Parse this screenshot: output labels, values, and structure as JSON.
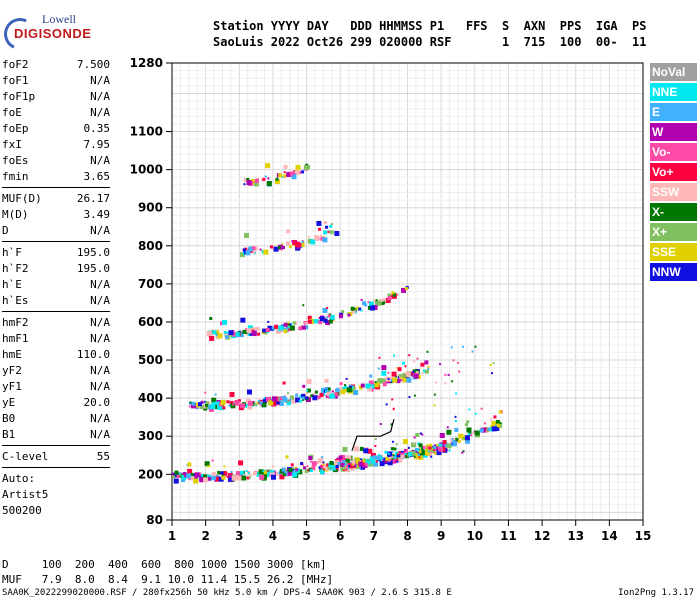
{
  "logo": {
    "line1": "Lowell",
    "line2": "DIGISONDE"
  },
  "header": {
    "line1": "Station YYYY DAY   DDD HHMMSS P1   FFS  S  AXN  PPS  IGA  PS",
    "line2": "SaoLuis 2022 Oct26 299 020000 RSF       1  715  100  00-  11"
  },
  "params": [
    [
      {
        "k": "foF2",
        "v": "7.500"
      },
      {
        "k": "foF1",
        "v": "N/A"
      },
      {
        "k": "foF1p",
        "v": "N/A"
      },
      {
        "k": "foE",
        "v": "N/A"
      },
      {
        "k": "foEp",
        "v": "0.35"
      },
      {
        "k": "fxI",
        "v": "7.95"
      },
      {
        "k": "foEs",
        "v": "N/A"
      },
      {
        "k": "fmin",
        "v": "3.65"
      }
    ],
    [
      {
        "k": "MUF(D)",
        "v": "26.17"
      },
      {
        "k": "M(D)",
        "v": "3.49"
      },
      {
        "k": "D",
        "v": "N/A"
      }
    ],
    [
      {
        "k": "h`F",
        "v": "195.0"
      },
      {
        "k": "h`F2",
        "v": "195.0"
      },
      {
        "k": "h`E",
        "v": "N/A"
      },
      {
        "k": "h`Es",
        "v": "N/A"
      }
    ],
    [
      {
        "k": "hmF2",
        "v": "N/A"
      },
      {
        "k": "hmF1",
        "v": "N/A"
      },
      {
        "k": "hmE",
        "v": "110.0"
      },
      {
        "k": "yF2",
        "v": "N/A"
      },
      {
        "k": "yF1",
        "v": "N/A"
      },
      {
        "k": "yE",
        "v": "20.0"
      },
      {
        "k": "B0",
        "v": "N/A"
      },
      {
        "k": "B1",
        "v": "N/A"
      }
    ],
    [
      {
        "k": "C-level",
        "v": "55"
      }
    ]
  ],
  "auto": [
    "Auto:",
    "Artist5",
    "500200"
  ],
  "legend": [
    {
      "label": "NoVal",
      "color": "#a0a0a0"
    },
    {
      "label": "NNE",
      "color": "#00e8f0"
    },
    {
      "label": "E",
      "color": "#40b0ff"
    },
    {
      "label": "W",
      "color": "#b000b0"
    },
    {
      "label": "Vo-",
      "color": "#ff4aa8"
    },
    {
      "label": "Vo+",
      "color": "#ff0040"
    },
    {
      "label": "SSW",
      "color": "#ffb8b8"
    },
    {
      "label": "X-",
      "color": "#007800"
    },
    {
      "label": "X+",
      "color": "#80c060"
    },
    {
      "label": "SSE",
      "color": "#e0d000"
    },
    {
      "label": "NNW",
      "color": "#1010e0"
    }
  ],
  "footer": {
    "line1": "D     100  200  400  600  800 1000 1500 3000 [km]",
    "line2": "MUF   7.9  8.0  8.4  9.1 10.0 11.4 15.5 26.2 [MHz]",
    "left": "SAA0K_2022299020000.RSF / 280fx256h 50 kHz 5.0 km / DPS-4 SAA0K 903 / 2.6 S 315.8 E",
    "right": "Ion2Png 1.3.17"
  },
  "chart_data": {
    "type": "scatter",
    "xlim": [
      1,
      15
    ],
    "ylim": [
      80,
      1280
    ],
    "xticks": [
      1,
      2,
      3,
      4,
      5,
      6,
      7,
      8,
      9,
      10,
      11,
      12,
      13,
      14,
      15
    ],
    "yticks": [
      80,
      200,
      300,
      400,
      500,
      600,
      700,
      800,
      900,
      1000,
      1100,
      1280
    ],
    "grid": true,
    "traces": [
      {
        "name": "F2-1",
        "layer": "F",
        "x0": 1.0,
        "x1": 9.2,
        "y0": 197,
        "y1": 275,
        "density": 320
      },
      {
        "name": "F2-1 upper",
        "layer": "F",
        "x0": 5.0,
        "x1": 10.8,
        "y0": 228,
        "y1": 340,
        "density": 200
      },
      {
        "name": "F2-2",
        "layer": "F",
        "x0": 1.5,
        "x1": 8.6,
        "y0": 385,
        "y1": 478,
        "density": 260
      },
      {
        "name": "F2-3",
        "layer": "F",
        "x0": 2.0,
        "x1": 8.0,
        "y0": 572,
        "y1": 688,
        "density": 160
      },
      {
        "name": "F2-4",
        "layer": "F",
        "x0": 3.0,
        "x1": 6.0,
        "y0": 790,
        "y1": 850,
        "density": 70
      },
      {
        "name": "F2-5",
        "layer": "F",
        "x0": 3.0,
        "x1": 5.0,
        "y0": 970,
        "y1": 1010,
        "density": 40
      }
    ],
    "trace_line": {
      "x": [
        6.35,
        6.5,
        7.2,
        7.5,
        7.55,
        7.6
      ],
      "y": [
        262,
        300,
        300,
        312,
        330,
        345
      ]
    }
  }
}
